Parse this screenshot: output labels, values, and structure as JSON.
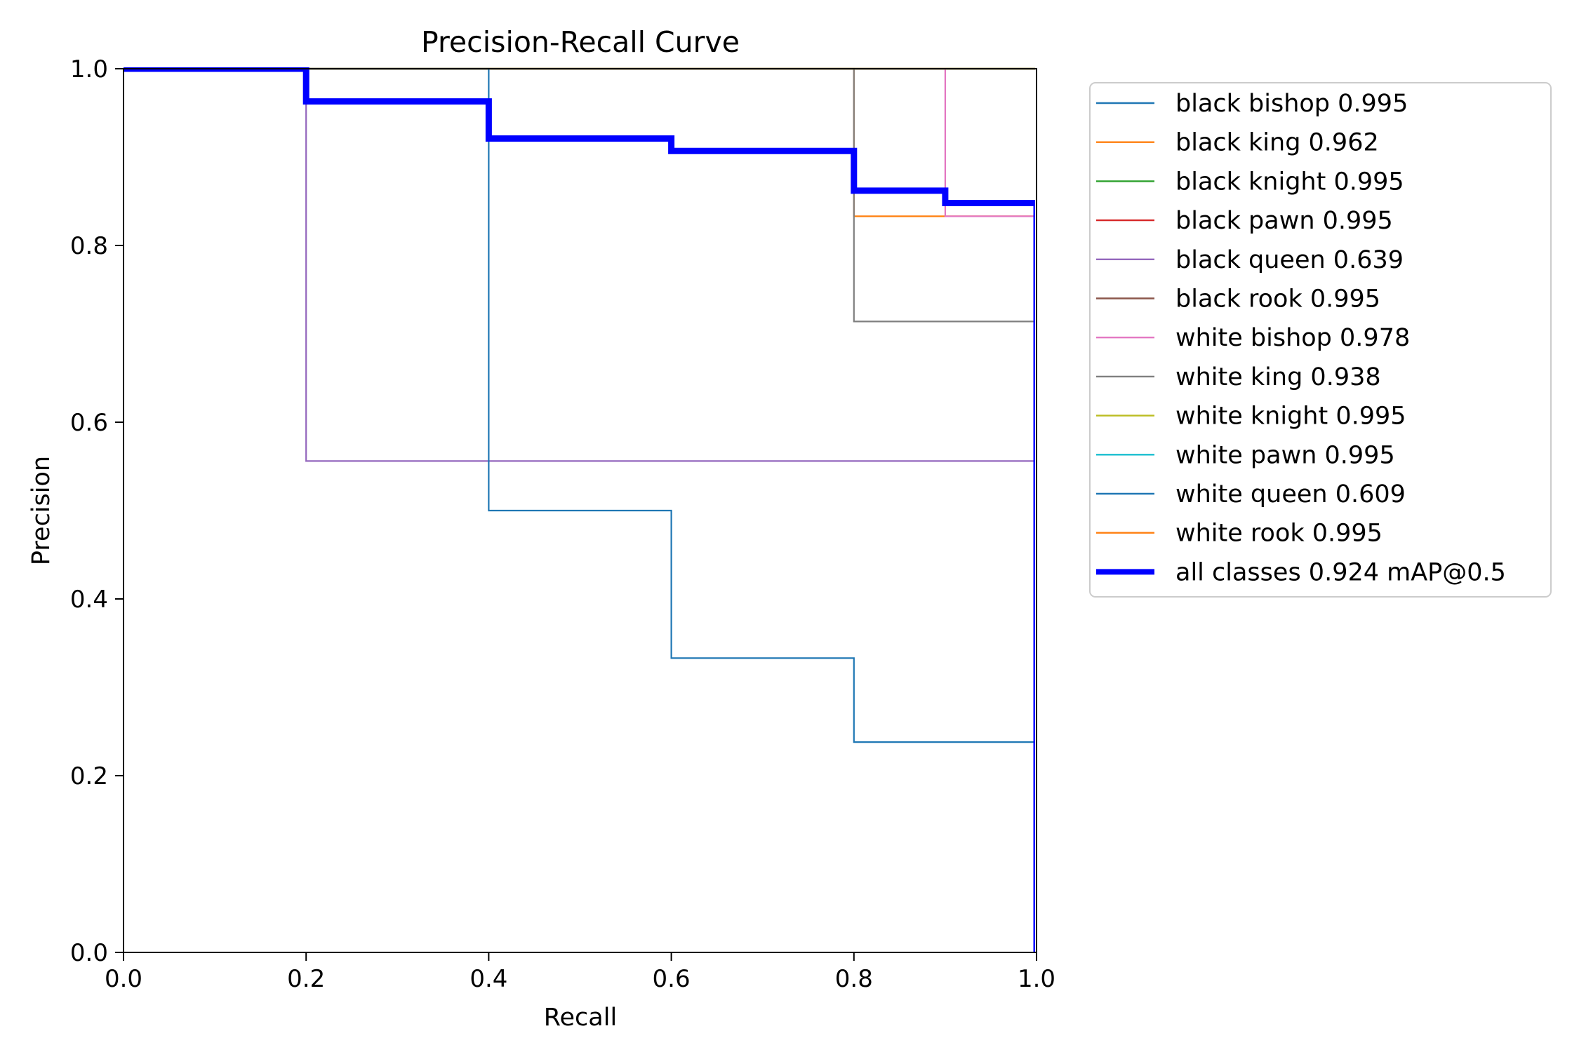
{
  "chart_data": {
    "type": "line",
    "title": "Precision-Recall Curve",
    "xlabel": "Recall",
    "ylabel": "Precision",
    "xlim": [
      0,
      1
    ],
    "ylim": [
      0,
      1
    ],
    "xticks": [
      "0.0",
      "0.2",
      "0.4",
      "0.6",
      "0.8",
      "1.0"
    ],
    "yticks": [
      "0.0",
      "0.2",
      "0.4",
      "0.6",
      "0.8",
      "1.0"
    ],
    "grid": false,
    "legend_position": "outside-right",
    "series": [
      {
        "name": "black bishop 0.995",
        "color": "#1f77b4",
        "width": 2.2,
        "points": [
          [
            0,
            1
          ],
          [
            1,
            1
          ],
          [
            1,
            0
          ]
        ]
      },
      {
        "name": "black king 0.962",
        "color": "#ff7f0e",
        "width": 2.2,
        "points": [
          [
            0,
            1
          ],
          [
            0.8,
            1
          ],
          [
            0.8,
            0.833
          ],
          [
            1,
            0.833
          ],
          [
            1,
            0
          ]
        ]
      },
      {
        "name": "black knight 0.995",
        "color": "#2ca02c",
        "width": 2.2,
        "points": [
          [
            0,
            1
          ],
          [
            1,
            1
          ],
          [
            1,
            0
          ]
        ]
      },
      {
        "name": "black pawn 0.995",
        "color": "#d62728",
        "width": 2.2,
        "points": [
          [
            0,
            1
          ],
          [
            1,
            1
          ],
          [
            1,
            0
          ]
        ]
      },
      {
        "name": "black queen 0.639",
        "color": "#9467bd",
        "width": 2.2,
        "points": [
          [
            0,
            1
          ],
          [
            0.2,
            1
          ],
          [
            0.2,
            0.556
          ],
          [
            1,
            0.556
          ],
          [
            1,
            0
          ]
        ]
      },
      {
        "name": "black rook 0.995",
        "color": "#8c564b",
        "width": 2.2,
        "points": [
          [
            0,
            1
          ],
          [
            1,
            1
          ],
          [
            1,
            0
          ]
        ]
      },
      {
        "name": "white bishop 0.978",
        "color": "#e377c2",
        "width": 2.2,
        "points": [
          [
            0,
            1
          ],
          [
            0.9,
            1
          ],
          [
            0.9,
            0.833
          ],
          [
            1,
            0.833
          ],
          [
            1,
            0
          ]
        ]
      },
      {
        "name": "white king 0.938",
        "color": "#7f7f7f",
        "width": 2.2,
        "points": [
          [
            0,
            1
          ],
          [
            0.8,
            1
          ],
          [
            0.8,
            0.714
          ],
          [
            1,
            0.714
          ],
          [
            1,
            0
          ]
        ]
      },
      {
        "name": "white knight 0.995",
        "color": "#bcbd22",
        "width": 2.2,
        "points": [
          [
            0,
            1
          ],
          [
            1,
            1
          ],
          [
            1,
            0
          ]
        ]
      },
      {
        "name": "white pawn 0.995",
        "color": "#17becf",
        "width": 2.2,
        "points": [
          [
            0,
            1
          ],
          [
            1,
            1
          ],
          [
            1,
            0
          ]
        ]
      },
      {
        "name": "white queen 0.609",
        "color": "#1f77b4",
        "width": 2.2,
        "points": [
          [
            0,
            1
          ],
          [
            0.4,
            1
          ],
          [
            0.4,
            0.5
          ],
          [
            0.6,
            0.5
          ],
          [
            0.6,
            0.333
          ],
          [
            0.8,
            0.333
          ],
          [
            0.8,
            0.238
          ],
          [
            1,
            0.238
          ],
          [
            1,
            0
          ]
        ]
      },
      {
        "name": "white rook 0.995",
        "color": "#ff7f0e",
        "width": 2.2,
        "points": [
          [
            0,
            1
          ],
          [
            1,
            1
          ],
          [
            1,
            0
          ]
        ]
      },
      {
        "name": "all classes 0.924 mAP@0.5",
        "color": "#0000ff",
        "width": 9,
        "points": [
          [
            0,
            1
          ],
          [
            0.2,
            1
          ],
          [
            0.2,
            0.963
          ],
          [
            0.4,
            0.963
          ],
          [
            0.4,
            0.921
          ],
          [
            0.6,
            0.921
          ],
          [
            0.6,
            0.907
          ],
          [
            0.8,
            0.907
          ],
          [
            0.8,
            0.862
          ],
          [
            0.9,
            0.862
          ],
          [
            0.9,
            0.848
          ],
          [
            1,
            0.848
          ],
          [
            1,
            0
          ]
        ]
      }
    ]
  }
}
